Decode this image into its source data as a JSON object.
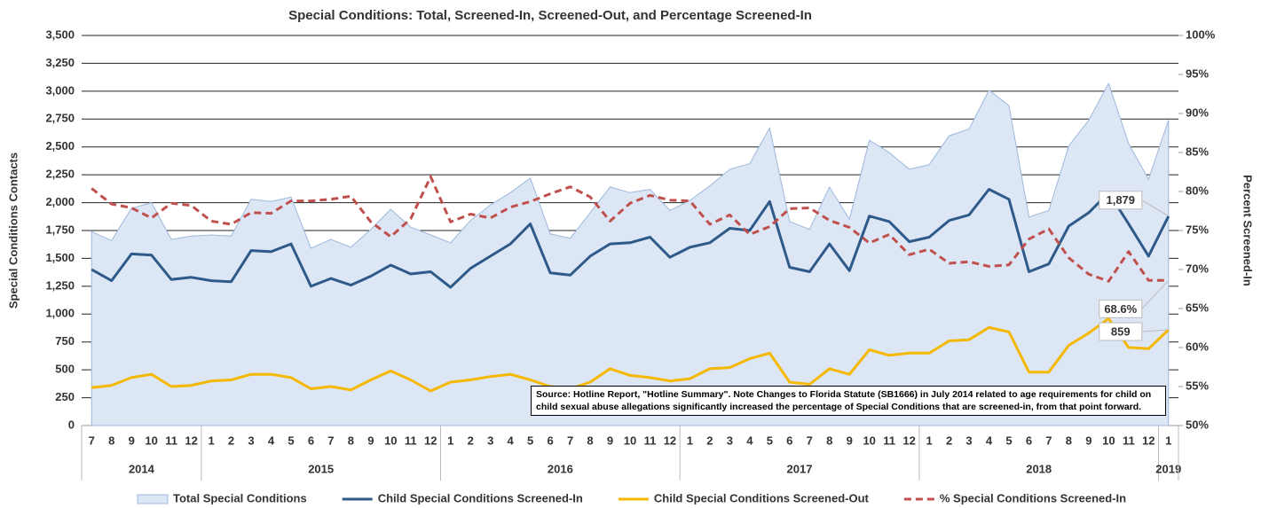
{
  "chart_data": {
    "type": "line",
    "title": "Special Conditions: Total, Screened-In, Screened-Out, and Percentage Screened-In",
    "y_label": "Special Conditions Contacts",
    "y2_label": "Percent Screened-In",
    "annotation": "Source: Hotline Report, \"Hotline Summary\". Note Changes to Florida Statute (SB1666) in July 2014 related to age requirements for child on child sexual abuse allegations significantly increased the percentage of Special Conditions that are screened-in, from that point forward.",
    "categories": [
      "7",
      "8",
      "9",
      "10",
      "11",
      "12",
      "1",
      "2",
      "3",
      "4",
      "5",
      "6",
      "7",
      "8",
      "9",
      "10",
      "11",
      "12",
      "1",
      "2",
      "3",
      "4",
      "5",
      "6",
      "7",
      "8",
      "9",
      "10",
      "11",
      "12",
      "1",
      "2",
      "3",
      "4",
      "5",
      "6",
      "7",
      "8",
      "9",
      "10",
      "11",
      "12",
      "1",
      "2",
      "3",
      "4",
      "5",
      "6",
      "7",
      "8",
      "9",
      "10",
      "11",
      "12",
      "1"
    ],
    "category_years": [
      "2014",
      "2014",
      "2014",
      "2014",
      "2014",
      "2014",
      "2015",
      "2015",
      "2015",
      "2015",
      "2015",
      "2015",
      "2015",
      "2015",
      "2015",
      "2015",
      "2015",
      "2015",
      "2016",
      "2016",
      "2016",
      "2016",
      "2016",
      "2016",
      "2016",
      "2016",
      "2016",
      "2016",
      "2016",
      "2016",
      "2017",
      "2017",
      "2017",
      "2017",
      "2017",
      "2017",
      "2017",
      "2017",
      "2017",
      "2017",
      "2017",
      "2017",
      "2018",
      "2018",
      "2018",
      "2018",
      "2018",
      "2018",
      "2018",
      "2018",
      "2018",
      "2018",
      "2018",
      "2018",
      "2019"
    ],
    "ylim": [
      0,
      3500
    ],
    "yticks": [
      0,
      250,
      500,
      750,
      {
        "value": 1000,
        "label": "1,000"
      },
      {
        "value": 1250,
        "label": "1,250"
      },
      {
        "value": 1500,
        "label": "1,500"
      },
      {
        "value": 1750,
        "label": "1,750"
      },
      {
        "value": 2000,
        "label": "2,000"
      },
      {
        "value": 2250,
        "label": "2,250"
      },
      {
        "value": 2500,
        "label": "2,500"
      },
      {
        "value": 2750,
        "label": "2,750"
      },
      {
        "value": 3000,
        "label": "3,000"
      },
      {
        "value": 3250,
        "label": "3,250"
      },
      {
        "value": 3500,
        "label": "3,500"
      }
    ],
    "y2lim": [
      50,
      100
    ],
    "y2ticks": [
      {
        "value": 50,
        "label": "50%"
      },
      {
        "value": 55,
        "label": "55%"
      },
      {
        "value": 60,
        "label": "60%"
      },
      {
        "value": 65,
        "label": "65%"
      },
      {
        "value": 70,
        "label": "70%"
      },
      {
        "value": 75,
        "label": "75%"
      },
      {
        "value": 80,
        "label": "80%"
      },
      {
        "value": 85,
        "label": "85%"
      },
      {
        "value": 90,
        "label": "90%"
      },
      {
        "value": 95,
        "label": "95%"
      },
      {
        "value": 100,
        "label": "100%"
      }
    ],
    "grid": true,
    "legend": "bottom",
    "series": [
      {
        "name": "Total Special Conditions",
        "type": "area",
        "color": "#dce6f4",
        "edge_color": "#9db8dc",
        "values": [
          1740,
          1660,
          1950,
          2000,
          1670,
          1700,
          1710,
          1700,
          2030,
          2010,
          2050,
          1590,
          1670,
          1600,
          1760,
          1940,
          1780,
          1710,
          1640,
          1840,
          1980,
          2090,
          2220,
          1720,
          1680,
          1910,
          2140,
          2090,
          2120,
          1930,
          2020,
          2150,
          2300,
          2350,
          2670,
          1830,
          1760,
          2140,
          1850,
          2560,
          2450,
          2300,
          2340,
          2600,
          2660,
          3010,
          2870,
          1870,
          1930,
          2510,
          2740,
          3070,
          2530,
          2210,
          2740
        ]
      },
      {
        "name": "Child Special Conditions Screened-In",
        "type": "line",
        "color": "#2e5a8a",
        "values": [
          1400,
          1300,
          1540,
          1530,
          1310,
          1330,
          1300,
          1290,
          1570,
          1560,
          1630,
          1250,
          1320,
          1260,
          1340,
          1440,
          1360,
          1380,
          1240,
          1410,
          1520,
          1630,
          1810,
          1370,
          1350,
          1520,
          1630,
          1640,
          1690,
          1510,
          1600,
          1640,
          1770,
          1750,
          2010,
          1420,
          1380,
          1630,
          1390,
          1880,
          1830,
          1650,
          1690,
          1840,
          1890,
          2120,
          2030,
          1380,
          1450,
          1790,
          1910,
          2090,
          1810,
          1520,
          1879
        ],
        "value_labels": [
          null,
          null,
          null,
          null,
          null,
          null,
          null,
          null,
          null,
          null,
          null,
          null,
          null,
          null,
          null,
          null,
          null,
          null,
          null,
          null,
          null,
          null,
          null,
          null,
          null,
          null,
          null,
          null,
          null,
          null,
          null,
          null,
          null,
          null,
          null,
          null,
          null,
          null,
          null,
          null,
          null,
          null,
          null,
          null,
          null,
          null,
          null,
          null,
          null,
          null,
          null,
          null,
          null,
          null,
          "1,879"
        ]
      },
      {
        "name": "Child Special Conditions Screened-Out",
        "type": "line",
        "color": "#f5b800",
        "values": [
          340,
          360,
          430,
          460,
          350,
          360,
          400,
          410,
          460,
          460,
          430,
          330,
          350,
          320,
          410,
          490,
          410,
          310,
          390,
          410,
          440,
          460,
          410,
          350,
          330,
          390,
          510,
          450,
          430,
          400,
          420,
          510,
          520,
          600,
          650,
          390,
          370,
          510,
          460,
          680,
          630,
          650,
          650,
          760,
          770,
          880,
          840,
          480,
          480,
          720,
          830,
          960,
          700,
          690,
          859
        ],
        "value_labels": [
          null,
          null,
          null,
          null,
          null,
          null,
          null,
          null,
          null,
          null,
          null,
          null,
          null,
          null,
          null,
          null,
          null,
          null,
          null,
          null,
          null,
          null,
          null,
          null,
          null,
          null,
          null,
          null,
          null,
          null,
          null,
          null,
          null,
          null,
          null,
          null,
          null,
          null,
          null,
          null,
          null,
          null,
          null,
          null,
          null,
          null,
          null,
          null,
          null,
          null,
          null,
          null,
          null,
          null,
          "859"
        ]
      },
      {
        "name": "% Special Conditions Screened-In",
        "type": "line",
        "line_style": "dashed",
        "axis": "y2",
        "color": "#c0504d",
        "values": [
          80.4,
          78.4,
          77.9,
          76.6,
          78.5,
          78.2,
          76.2,
          75.8,
          77.3,
          77.2,
          78.8,
          78.8,
          79.0,
          79.4,
          76.1,
          74.2,
          76.5,
          81.9,
          76.1,
          77.1,
          76.6,
          78.0,
          78.7,
          79.7,
          80.6,
          79.3,
          76.2,
          78.5,
          79.5,
          78.9,
          78.8,
          75.8,
          77.0,
          74.5,
          75.5,
          77.8,
          77.9,
          76.3,
          75.4,
          73.4,
          74.5,
          71.9,
          72.6,
          70.8,
          71.0,
          70.4,
          70.6,
          73.9,
          75.2,
          71.5,
          69.4,
          68.5,
          72.3,
          68.6,
          68.6
        ],
        "value_labels": [
          null,
          null,
          null,
          null,
          null,
          null,
          null,
          null,
          null,
          null,
          null,
          null,
          null,
          null,
          null,
          null,
          null,
          null,
          null,
          null,
          null,
          null,
          null,
          null,
          null,
          null,
          null,
          null,
          null,
          null,
          null,
          null,
          null,
          null,
          null,
          null,
          null,
          null,
          null,
          null,
          null,
          null,
          null,
          null,
          null,
          null,
          null,
          null,
          null,
          null,
          null,
          null,
          null,
          null,
          "68.6%"
        ]
      }
    ]
  }
}
